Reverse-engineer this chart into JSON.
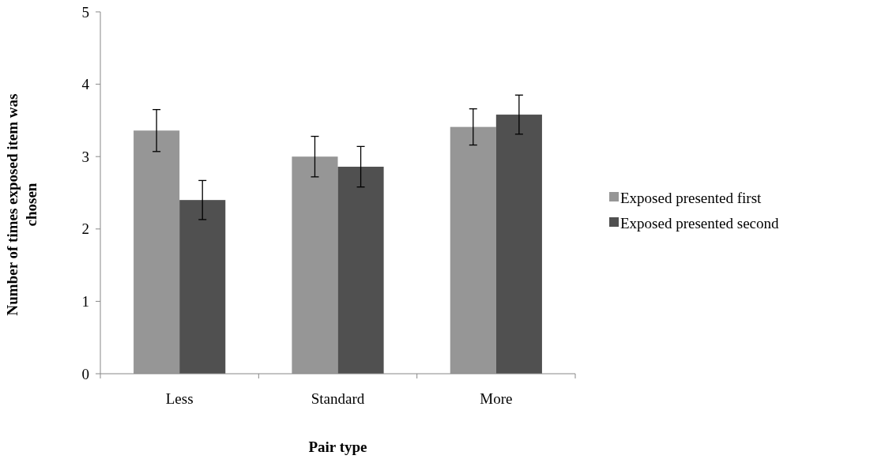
{
  "chart_data": {
    "type": "bar",
    "xlabel": "Pair type",
    "ylabel": "Number of times exposed item was chosen",
    "categories": [
      "Less",
      "Standard",
      "More"
    ],
    "series": [
      {
        "name": "Exposed presented first",
        "color": "#969696",
        "values": [
          3.36,
          3.0,
          3.41
        ],
        "errors": [
          0.29,
          0.28,
          0.25
        ]
      },
      {
        "name": "Exposed presented second",
        "color": "#505050",
        "values": [
          2.4,
          2.86,
          3.58
        ],
        "errors": [
          0.27,
          0.28,
          0.27
        ]
      }
    ],
    "ylim": [
      0,
      5
    ],
    "yticks": [
      0,
      1,
      2,
      3,
      4,
      5
    ],
    "legend": "right"
  }
}
